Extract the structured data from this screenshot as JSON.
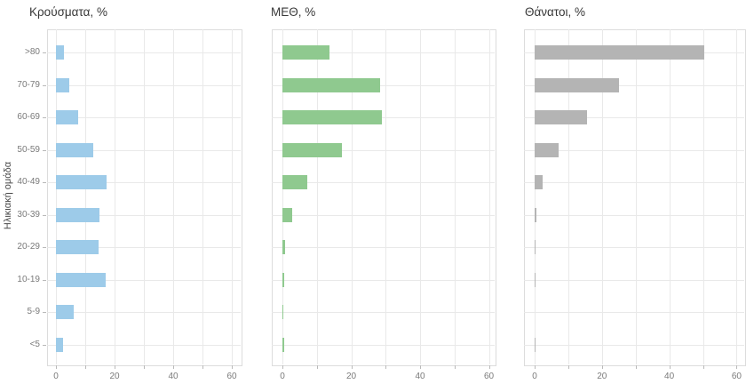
{
  "y_axis_title": "Ηλικιακή ομάδα",
  "colors": {
    "cases_bar": "#9dcbe9",
    "icu_bar": "#8fc98f",
    "deaths_bar": "#b4b4b4",
    "gridline": "#e9e9e9",
    "panel_border": "#dcdcdc",
    "tick_mark": "#b9b9b9",
    "axis_text": "#7a7a7a",
    "title_text": "#383838"
  },
  "chart_data": [
    {
      "type": "bar",
      "orientation": "horizontal",
      "title": "Κρούσματα, %",
      "categories": [
        ">80",
        "70-79",
        "60-69",
        "50-59",
        "40-49",
        "30-39",
        "20-29",
        "10-19",
        "5-9",
        "<5"
      ],
      "values": [
        2.6,
        4.4,
        7.6,
        12.7,
        17.3,
        14.8,
        14.5,
        17.1,
        6.1,
        2.3
      ],
      "xlabel": "",
      "ylabel": "Ηλικιακή ομάδα",
      "xlim": [
        0,
        63
      ],
      "xticks": [
        0,
        20,
        40,
        60
      ],
      "grid_every": 10,
      "grid": true,
      "legend": false,
      "color_key": "cases_bar",
      "show_y_labels": true
    },
    {
      "type": "bar",
      "orientation": "horizontal",
      "title": "ΜΕΘ, %",
      "categories": [
        ">80",
        "70-79",
        "60-69",
        "50-59",
        "40-49",
        "30-39",
        "20-29",
        "10-19",
        "5-9",
        "<5"
      ],
      "values": [
        13.7,
        28.5,
        28.9,
        17.2,
        7.3,
        2.8,
        0.9,
        0.4,
        0.3,
        0.4
      ],
      "xlabel": "",
      "ylabel": "",
      "xlim": [
        0,
        63
      ],
      "xticks": [
        0,
        20,
        40,
        60
      ],
      "grid_every": 10,
      "grid": true,
      "legend": false,
      "color_key": "icu_bar",
      "show_y_labels": false
    },
    {
      "type": "bar",
      "orientation": "horizontal",
      "title": "Θάνατοι, %",
      "categories": [
        ">80",
        "70-79",
        "60-69",
        "50-59",
        "40-49",
        "30-39",
        "20-29",
        "10-19",
        "5-9",
        "<5"
      ],
      "values": [
        50.5,
        25.0,
        15.6,
        7.0,
        2.3,
        0.5,
        0.3,
        0.2,
        0.0,
        0.2
      ],
      "xlabel": "",
      "ylabel": "",
      "xlim": [
        0,
        63
      ],
      "xticks": [
        0,
        20,
        40,
        60
      ],
      "grid_every": 10,
      "grid": true,
      "legend": false,
      "color_key": "deaths_bar",
      "show_y_labels": false
    }
  ]
}
